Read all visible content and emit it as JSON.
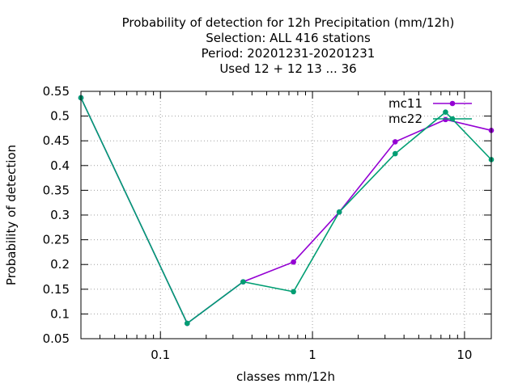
{
  "chart_data": {
    "type": "line",
    "title_lines": [
      "Probability of detection  for 12h Precipitation (mm/12h)",
      "Selection: ALL    416 stations",
      "Period: 20201231-20201231",
      "Used  12 + 12 13 ... 36"
    ],
    "xlabel": "classes mm/12h",
    "ylabel": "Probability of detection",
    "x_scale": "log",
    "xlim": [
      0.03,
      15
    ],
    "ylim": [
      0.05,
      0.55
    ],
    "x_tick_labels": [
      {
        "value": 0.1,
        "label": "0.1"
      },
      {
        "value": 1,
        "label": "1"
      },
      {
        "value": 10,
        "label": "10"
      }
    ],
    "y_ticks": [
      0.05,
      0.1,
      0.15,
      0.2,
      0.25,
      0.3,
      0.35,
      0.4,
      0.45,
      0.5,
      0.55
    ],
    "y_tick_labels": [
      "0.05",
      "0.1",
      "0.15",
      "0.2",
      "0.25",
      "0.3",
      "0.35",
      "0.4",
      "0.45",
      "0.5",
      "0.55"
    ],
    "grid": true,
    "legend_position": "top-right",
    "series": [
      {
        "name": "mc11",
        "color": "#9400d3",
        "points": [
          [
            0.03,
            0.537
          ],
          [
            0.15,
            0.081
          ],
          [
            0.35,
            0.165
          ],
          [
            0.75,
            0.205
          ],
          [
            1.5,
            0.306
          ],
          [
            3.5,
            0.448
          ],
          [
            7.5,
            0.493
          ],
          [
            15,
            0.471
          ]
        ]
      },
      {
        "name": "mc22",
        "color": "#009e73",
        "points": [
          [
            0.03,
            0.537
          ],
          [
            0.15,
            0.081
          ],
          [
            0.35,
            0.165
          ],
          [
            0.75,
            0.145
          ],
          [
            1.5,
            0.306
          ],
          [
            3.5,
            0.424
          ],
          [
            7.5,
            0.508
          ],
          [
            15,
            0.412
          ]
        ]
      }
    ]
  }
}
